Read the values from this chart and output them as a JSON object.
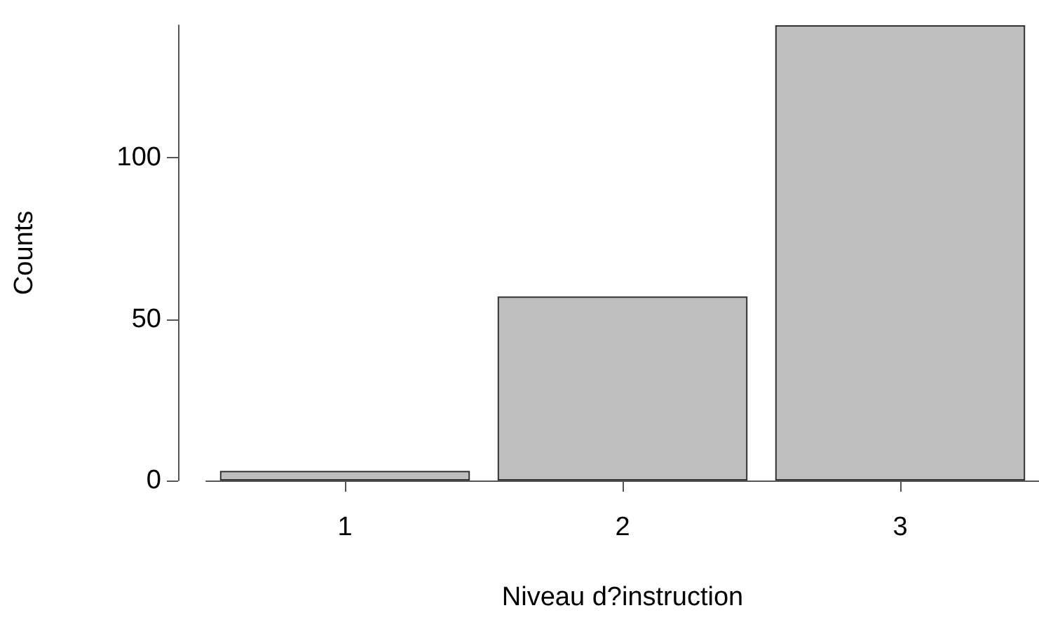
{
  "chart_data": {
    "type": "bar",
    "xlabel": "Niveau d?instruction",
    "ylabel": "Counts",
    "categories": [
      "1",
      "2",
      "3"
    ],
    "values": [
      3,
      57,
      141
    ],
    "color": "#bebebe",
    "ylim": [
      0,
      141
    ],
    "yticks": [
      0,
      50,
      100
    ],
    "grid": false
  }
}
